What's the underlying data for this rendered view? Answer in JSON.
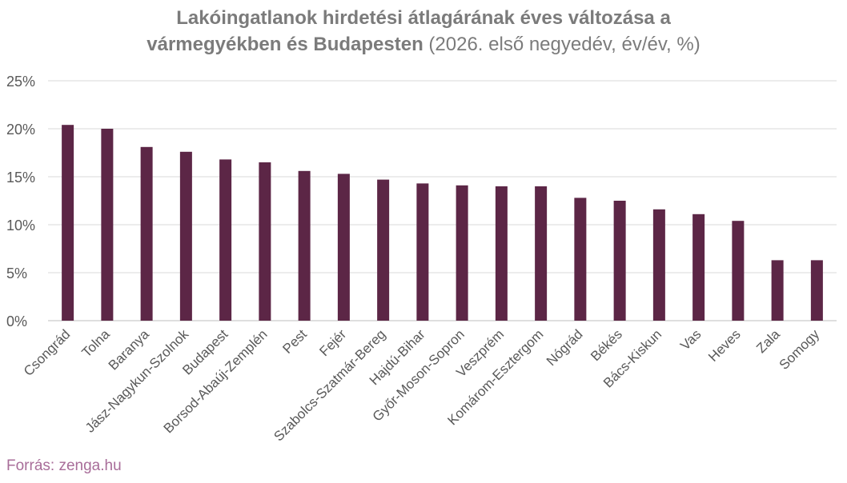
{
  "chart_data": {
    "type": "bar",
    "title": "Lakóingatlanok hirdetési átlagárának éves változása a vármegyékben és Budapesten",
    "subtitle": "(2026. első negyedév, év/év, %)",
    "categories": [
      "Csongrád",
      "Tolna",
      "Baranya",
      "Jász-Nagykun-Szolnok",
      "Budapest",
      "Borsod-Abaúj-Zemplén",
      "Pest",
      "Fejér",
      "Szabolcs-Szatmár-Bereg",
      "Hajdú-Bihar",
      "Győr-Moson-Sopron",
      "Veszprém",
      "Komárom-Esztergom",
      "Nógrád",
      "Békés",
      "Bács-Kiskun",
      "Vas",
      "Heves",
      "Zala",
      "Somogy"
    ],
    "values": [
      20.4,
      20.0,
      18.1,
      17.6,
      16.8,
      16.5,
      15.6,
      15.3,
      14.7,
      14.3,
      14.1,
      14.0,
      14.0,
      12.8,
      12.5,
      11.6,
      11.1,
      10.4,
      6.3,
      6.3
    ],
    "xlabel": "",
    "ylabel": "",
    "ylim": [
      0,
      25
    ],
    "yticks": [
      0,
      5,
      10,
      15,
      20,
      25
    ],
    "ytick_labels": [
      "0%",
      "5%",
      "10%",
      "15%",
      "20%",
      "25%"
    ],
    "grid": true,
    "legend": "none",
    "bar_color": "#5c2646"
  },
  "source": "Forrás: zenga.hu"
}
